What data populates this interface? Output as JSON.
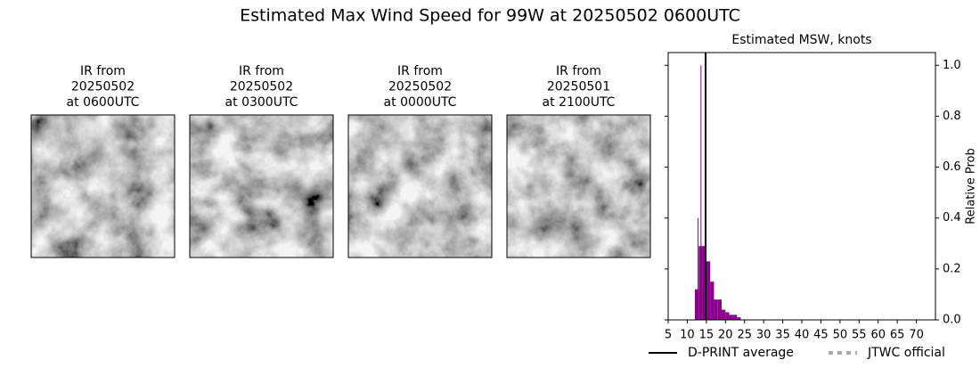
{
  "title": "Estimated Max Wind Speed for 99W at 20250502 0600UTC",
  "panels": [
    {
      "lines": [
        "IR from",
        "20250502",
        "at 0600UTC"
      ]
    },
    {
      "lines": [
        "IR from",
        "20250502",
        "at 0300UTC"
      ]
    },
    {
      "lines": [
        "IR from",
        "20250502",
        "at 0000UTC"
      ]
    },
    {
      "lines": [
        "IR from",
        "20250501",
        "at 2100UTC"
      ]
    }
  ],
  "chart_data": {
    "type": "histogram",
    "title": "Estimated MSW, knots",
    "y_label": "Relative Prob",
    "bins": [
      12,
      13,
      14,
      15,
      16,
      17,
      18,
      19,
      20,
      21,
      22,
      23,
      24
    ],
    "values": [
      0.12,
      0.29,
      0.29,
      0.23,
      0.15,
      0.08,
      0.08,
      0.04,
      0.03,
      0.02,
      0.02,
      0.01
    ],
    "color": "#8b008b",
    "spikes": {
      "x": [
        12.8,
        13.6
      ],
      "values": [
        0.4,
        1.0
      ]
    },
    "xlim": [
      5,
      75
    ],
    "xticks": [
      5,
      10,
      15,
      20,
      25,
      30,
      35,
      40,
      45,
      50,
      55,
      60,
      65,
      70
    ],
    "ylim": [
      0,
      1.05
    ],
    "yticks": [
      {
        "value": 0,
        "label": "0.0"
      },
      0.2,
      0.4,
      0.6,
      0.8,
      {
        "value": 1,
        "label": "1.0"
      }
    ],
    "series": [
      {
        "name": "D-PRINT average",
        "color": "#000000",
        "style": "solid",
        "x": 14.8
      },
      {
        "name": "JTWC official",
        "color": "#aaaaaa",
        "style": "dashed"
      }
    ]
  }
}
